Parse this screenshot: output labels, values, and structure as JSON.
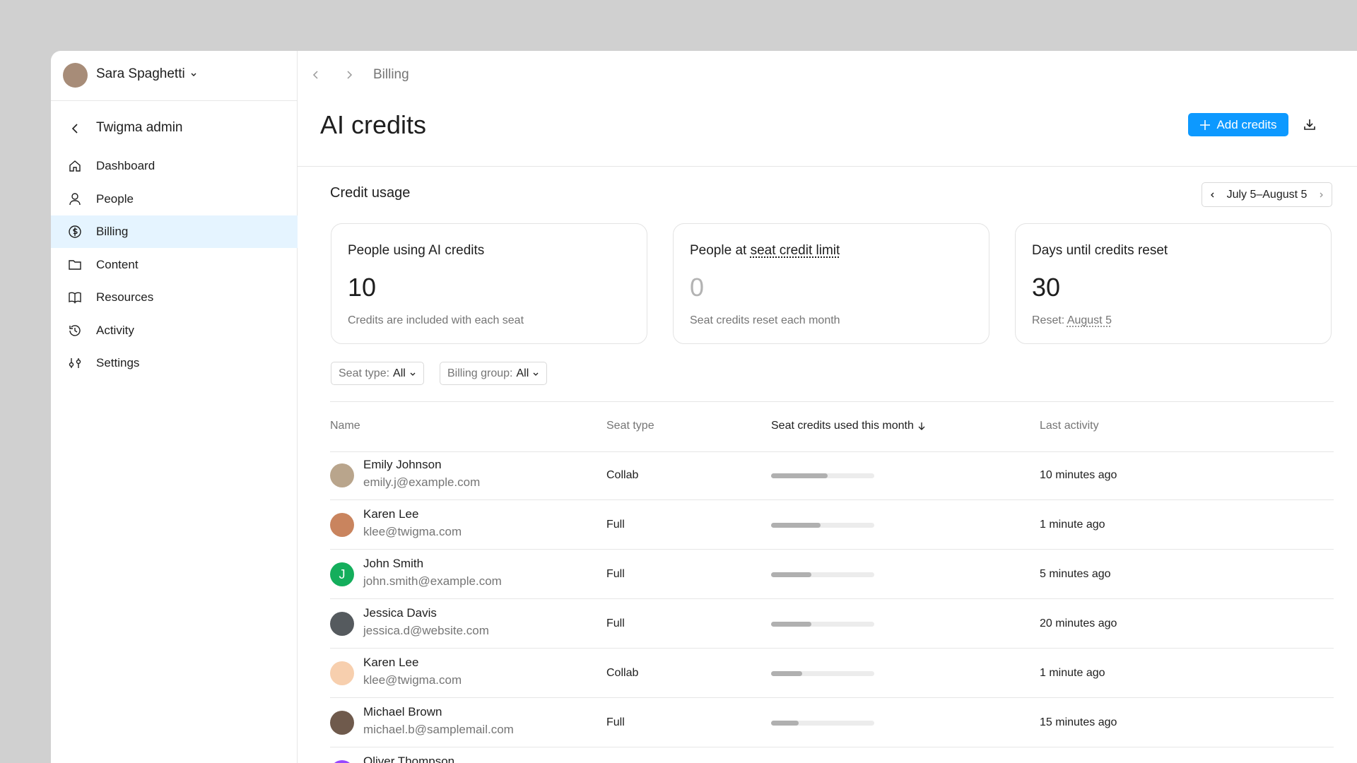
{
  "sidebar": {
    "user": "Sara Spaghetti",
    "section": "Twigma admin",
    "nav": [
      "Dashboard",
      "People",
      "Billing",
      "Content",
      "Resources",
      "Activity",
      "Settings"
    ],
    "active": 2
  },
  "breadcrumb": "Billing",
  "header": {
    "title": "AI credits",
    "button": "Add credits"
  },
  "usage": {
    "title": "Credit usage",
    "range": "July 5–August 5",
    "cards": [
      {
        "label": "People using AI credits",
        "value": 10,
        "note": "Credits are included with each seat"
      },
      {
        "label_prefix": "People at",
        "label_link": "seat credit limit",
        "value": 0,
        "note": "Seat credits reset each month"
      },
      {
        "label": "Days until credits reset",
        "value": 30,
        "note_prefix": "Reset:",
        "note_link": "August 5"
      }
    ]
  },
  "filters": [
    {
      "label": "Seat type:",
      "value": "All"
    },
    {
      "label": "Billing group:",
      "value": "All"
    }
  ],
  "table": {
    "columns": [
      "Name",
      "Seat type",
      "Seat credits used this month",
      "Last activity"
    ],
    "rows": [
      {
        "name": "Emily Johnson",
        "email": "emily.j@example.com",
        "seat": "Collab",
        "used": 55,
        "activity": "10 minutes ago",
        "avatar_color": "#b9a58c"
      },
      {
        "name": "Karen Lee",
        "email": "klee@twigma.com",
        "seat": "Full",
        "used": 48,
        "activity": "1 minute ago",
        "avatar_color": "#c9845e"
      },
      {
        "name": "John Smith",
        "email": "john.smith@example.com",
        "seat": "Full",
        "used": 39,
        "activity": "5 minutes ago",
        "avatar_color": "#14ae5c",
        "avatar_initial": "J"
      },
      {
        "name": "Jessica Davis",
        "email": "jessica.d@website.com",
        "seat": "Full",
        "used": 39,
        "activity": "20 minutes ago",
        "avatar_color": "#555a5e"
      },
      {
        "name": "Karen Lee",
        "email": "klee@twigma.com",
        "seat": "Collab",
        "used": 30,
        "activity": "1 minute ago",
        "avatar_color": "#f7cfae"
      },
      {
        "name": "Michael Brown",
        "email": "michael.b@samplemail.com",
        "seat": "Full",
        "used": 27,
        "activity": "15 minutes ago",
        "avatar_color": "#6f5a4c"
      },
      {
        "name": "Oliver Thompson",
        "avatar_color": "#9747ff"
      }
    ]
  }
}
